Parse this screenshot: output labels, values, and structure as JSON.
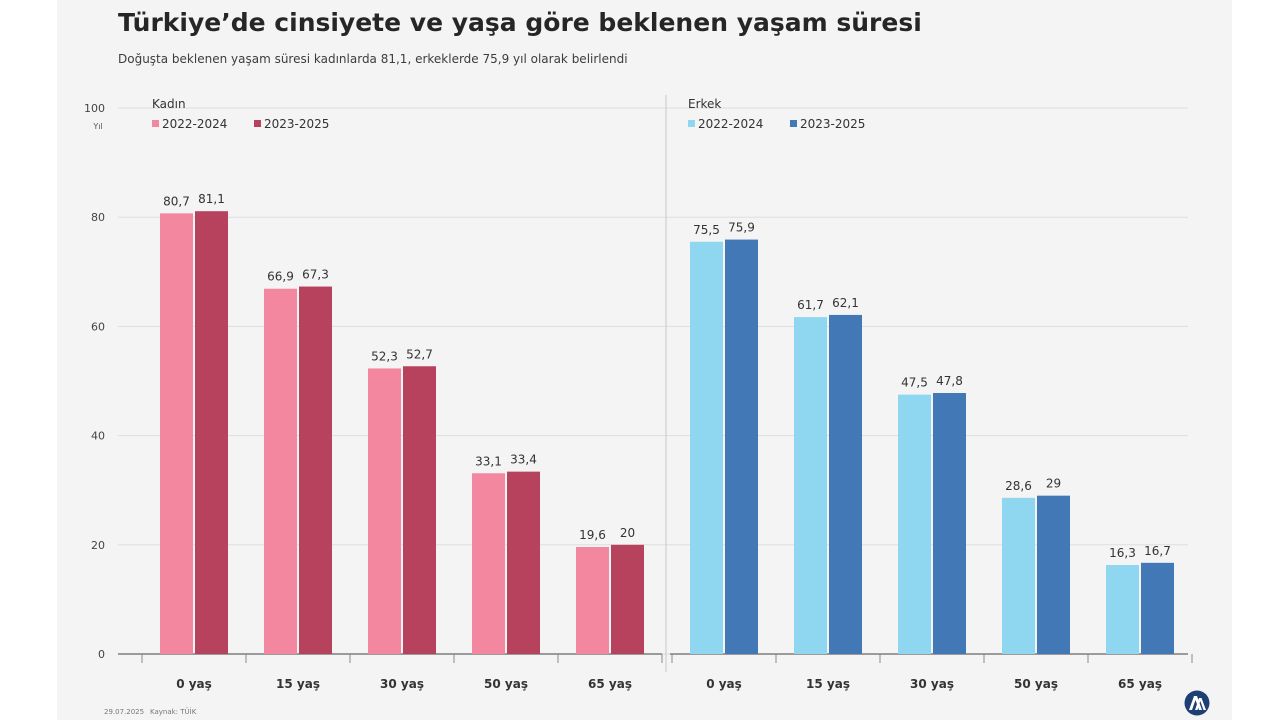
{
  "title": "Türkiye’de cinsiyete ve yaşa göre beklenen yaşam süresi",
  "subtitle": "Doğuşta beklenen yaşam süresi kadınlarda 81,1, erkeklerde 75,9 yıl olarak belirlendi",
  "footer": {
    "date": "29.07.2025",
    "source": "Kaynak: TÜİK"
  },
  "logo_icon": "aa-logo-icon",
  "chart_data": [
    {
      "type": "bar",
      "title": "Kadın",
      "ylabel": "Yıl",
      "ylim": [
        0,
        100
      ],
      "yticks": [
        0,
        20,
        40,
        60,
        80,
        100
      ],
      "grid": true,
      "legend_position": "top-left",
      "categories": [
        "0 yaş",
        "15 yaş",
        "30 yaş",
        "50 yaş",
        "65 yaş"
      ],
      "series": [
        {
          "name": "2022-2024",
          "color": "#f2879f",
          "values": [
            80.7,
            66.9,
            52.3,
            33.1,
            19.6
          ],
          "labels": [
            "80,7",
            "66,9",
            "52,3",
            "33,1",
            "19,6"
          ]
        },
        {
          "name": "2023-2025",
          "color": "#b7425e",
          "values": [
            81.1,
            67.3,
            52.7,
            33.4,
            20
          ],
          "labels": [
            "81,1",
            "67,3",
            "52,7",
            "33,4",
            "20"
          ]
        }
      ]
    },
    {
      "type": "bar",
      "title": "Erkek",
      "ylim": [
        0,
        100
      ],
      "grid": true,
      "legend_position": "top-left",
      "categories": [
        "0 yaş",
        "15 yaş",
        "30 yaş",
        "50 yaş",
        "65 yaş"
      ],
      "series": [
        {
          "name": "2022-2024",
          "color": "#8fd6f0",
          "values": [
            75.5,
            61.7,
            47.5,
            28.6,
            16.3
          ],
          "labels": [
            "75,5",
            "61,7",
            "47,5",
            "28,6",
            "16,3"
          ]
        },
        {
          "name": "2023-2025",
          "color": "#4378b6",
          "values": [
            75.9,
            62.1,
            47.8,
            29,
            16.7
          ],
          "labels": [
            "75,9",
            "62,1",
            "47,8",
            "29",
            "16,7"
          ]
        }
      ]
    }
  ]
}
